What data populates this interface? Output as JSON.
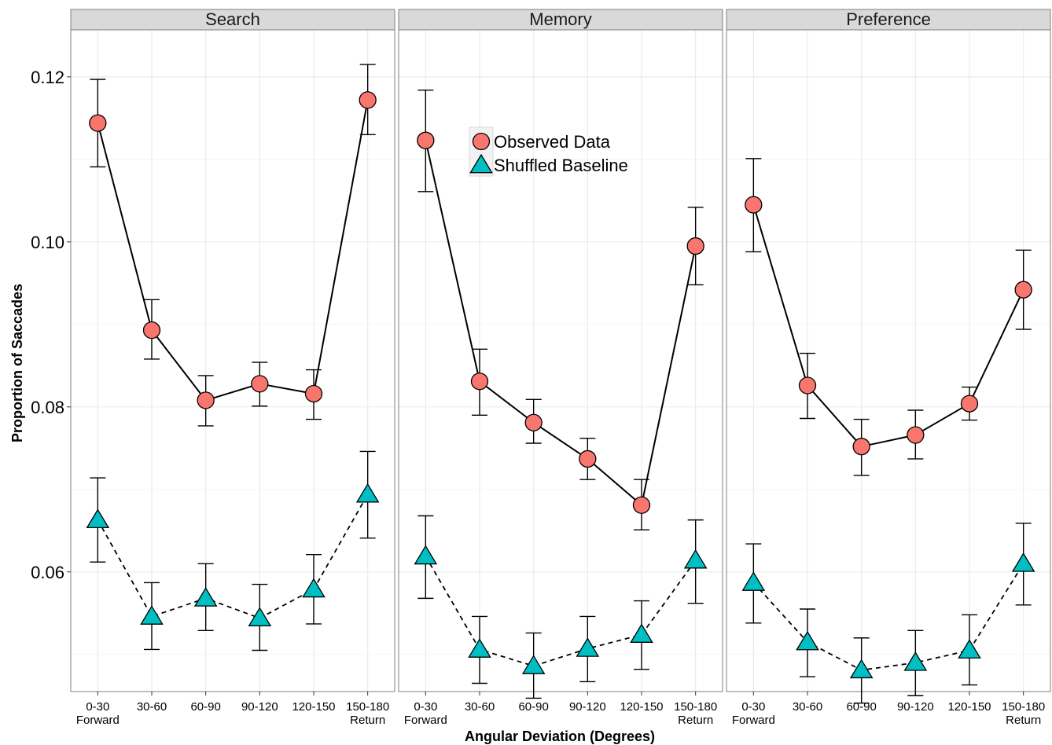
{
  "chart_data": {
    "type": "line",
    "xlabel": "Angular Deviation (Degrees)",
    "ylabel": "Proportion of Saccades",
    "ylim": [
      0.0455,
      0.1257
    ],
    "yticks": [
      "0.06",
      "0.08",
      "0.10",
      "0.12"
    ],
    "ytick_values": [
      0.06,
      0.08,
      0.1,
      0.12
    ],
    "categories": [
      "0-30",
      "30-60",
      "60-90",
      "90-120",
      "120-150",
      "150-180"
    ],
    "category_sublabels": [
      "Forward",
      "",
      "",
      "",
      "",
      "Return"
    ],
    "grid": true,
    "legend": {
      "placement": "top-center (inside Memory panel)",
      "entries": [
        "Observed Data",
        "Shuffled Baseline"
      ]
    },
    "colors": {
      "observed": "#F8766D",
      "baseline": "#00BFC4",
      "strip": "#D9D9D9",
      "grid": "#EBEBEB"
    },
    "panels": [
      {
        "title": "Search",
        "series": [
          {
            "name": "Observed Data",
            "style": "solid",
            "marker": "circle",
            "values": [
              0.1144,
              0.0893,
              0.0808,
              0.0828,
              0.0816,
              0.1172
            ],
            "lower": [
              0.1091,
              0.0858,
              0.0777,
              0.0801,
              0.0785,
              0.113
            ],
            "upper": [
              0.1197,
              0.093,
              0.0838,
              0.0854,
              0.0845,
              0.1215
            ]
          },
          {
            "name": "Shuffled Baseline",
            "style": "dashed",
            "marker": "triangle",
            "values": [
              0.0663,
              0.0546,
              0.0568,
              0.0544,
              0.0579,
              0.0694
            ],
            "lower": [
              0.0612,
              0.0506,
              0.0529,
              0.0505,
              0.0537,
              0.0641
            ],
            "upper": [
              0.0714,
              0.0587,
              0.061,
              0.0585,
              0.0621,
              0.0746
            ]
          }
        ]
      },
      {
        "title": "Memory",
        "series": [
          {
            "name": "Observed Data",
            "style": "solid",
            "marker": "circle",
            "values": [
              0.1123,
              0.0831,
              0.0781,
              0.0737,
              0.0681,
              0.0995
            ],
            "lower": [
              0.1061,
              0.079,
              0.0756,
              0.0712,
              0.0651,
              0.0948
            ],
            "upper": [
              0.1184,
              0.087,
              0.0809,
              0.0762,
              0.0712,
              0.1042
            ]
          },
          {
            "name": "Shuffled Baseline",
            "style": "dashed",
            "marker": "triangle",
            "values": [
              0.0619,
              0.0506,
              0.0486,
              0.0507,
              0.0524,
              0.0614
            ],
            "lower": [
              0.0568,
              0.0465,
              0.0447,
              0.0467,
              0.0482,
              0.0562
            ],
            "upper": [
              0.0668,
              0.0546,
              0.0526,
              0.0546,
              0.0565,
              0.0663
            ]
          }
        ]
      },
      {
        "title": "Preference",
        "series": [
          {
            "name": "Observed Data",
            "style": "solid",
            "marker": "circle",
            "values": [
              0.1045,
              0.0826,
              0.0752,
              0.0766,
              0.0804,
              0.0942
            ],
            "lower": [
              0.0988,
              0.0786,
              0.0717,
              0.0737,
              0.0784,
              0.0894
            ],
            "upper": [
              0.1101,
              0.0865,
              0.0785,
              0.0796,
              0.0824,
              0.099
            ]
          },
          {
            "name": "Shuffled Baseline",
            "style": "dashed",
            "marker": "triangle",
            "values": [
              0.0587,
              0.0515,
              0.0481,
              0.049,
              0.0505,
              0.061
            ],
            "lower": [
              0.0538,
              0.0473,
              0.0441,
              0.045,
              0.0463,
              0.056
            ],
            "upper": [
              0.0634,
              0.0555,
              0.052,
              0.0529,
              0.0548,
              0.0659
            ]
          }
        ]
      }
    ]
  }
}
